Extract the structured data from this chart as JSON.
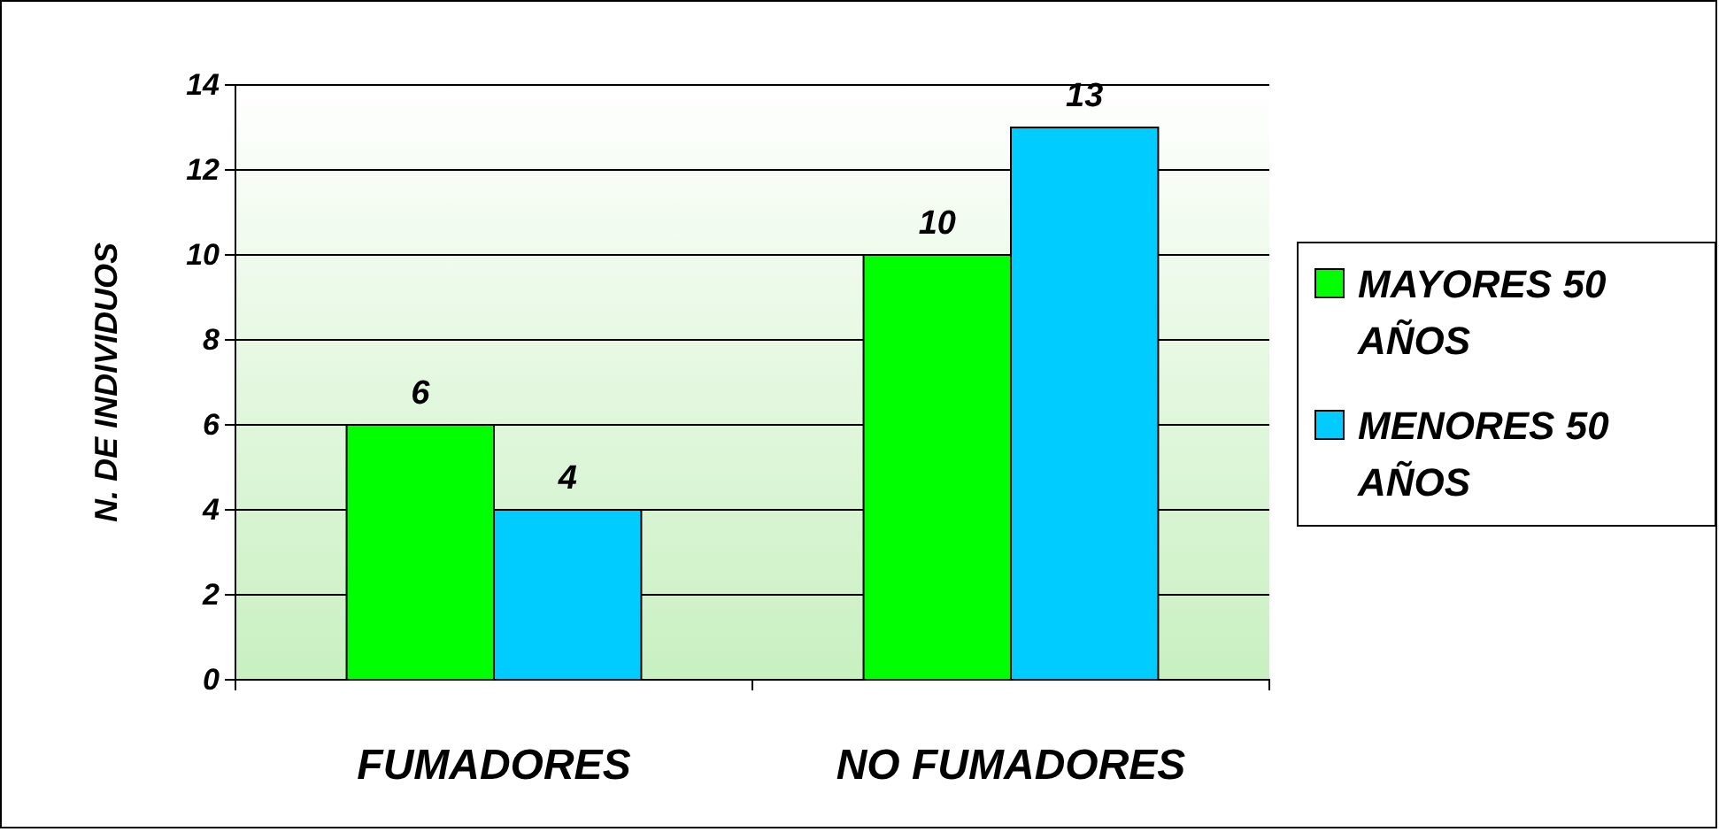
{
  "chart_data": {
    "type": "bar",
    "ylabel": "N. DE INDIVIDUOS",
    "categories": [
      "FUMADORES",
      "NO FUMADORES"
    ],
    "series": [
      {
        "name": "MAYORES 50 AÑOS",
        "color": "#00ff00",
        "values": [
          6,
          10
        ]
      },
      {
        "name": "MENORES 50 AÑOS",
        "color": "#00ccff",
        "values": [
          4,
          13
        ]
      }
    ],
    "ylim": [
      0,
      14
    ],
    "yticks": [
      0,
      2,
      4,
      6,
      8,
      10,
      12,
      14
    ],
    "grid": "y",
    "legend": "right",
    "data_labels": true
  }
}
